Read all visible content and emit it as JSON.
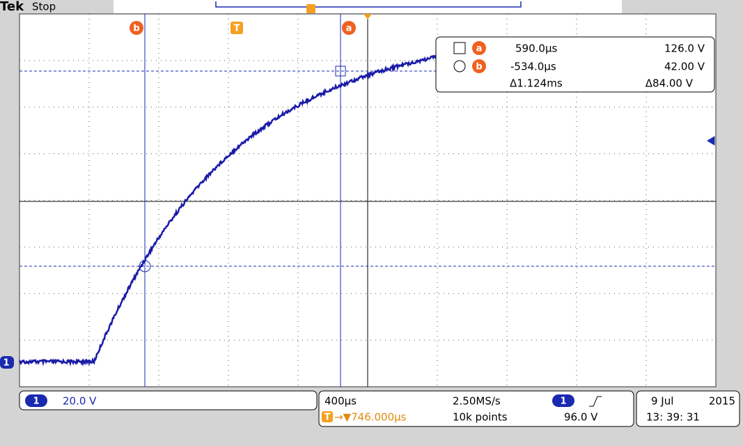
{
  "header": {
    "brand": "Tek",
    "status": "Stop"
  },
  "cursors": {
    "b": "b",
    "t": "T",
    "a": "a"
  },
  "readout": {
    "rows": [
      {
        "marker": "a",
        "time": "590.0µs",
        "voltage": "126.0 V"
      },
      {
        "marker": "b",
        "time": "-534.0µs",
        "voltage": "42.00 V"
      }
    ],
    "delta_time": "Δ1.124ms",
    "delta_voltage": "Δ84.00 V"
  },
  "ground_marker": "1",
  "channel": {
    "number": "1",
    "scale": "20.0 V"
  },
  "acquisition": {
    "timebase": "400µs",
    "sample_rate": "2.50MS/s",
    "trigger_channel": "1",
    "trigger_level": "96.0 V",
    "trigger_marker": "T",
    "trigger_position": "→▼746.000µs",
    "record_length": "10k points"
  },
  "datetime": {
    "date": "9 Jul",
    "year": "2015",
    "time": "13: 39: 31"
  }
}
